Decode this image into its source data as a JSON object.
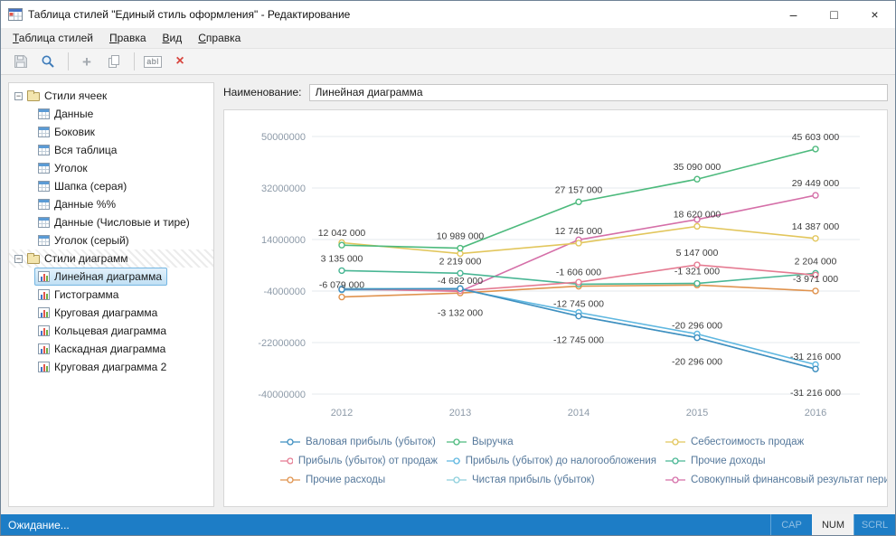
{
  "window": {
    "title": "Таблица стилей \"Единый стиль оформления\" - Редактирование",
    "controls": {
      "minimize": "–",
      "maximize": "□",
      "close": "×"
    }
  },
  "menu": {
    "items": [
      {
        "accel": "Т",
        "rest": "аблица стилей"
      },
      {
        "accel": "П",
        "rest": "равка"
      },
      {
        "accel": "В",
        "rest": "ид"
      },
      {
        "accel": "С",
        "rest": "правка"
      }
    ]
  },
  "toolbar": {
    "icons": [
      "save-icon",
      "search-icon",
      "add-icon",
      "copy-icon",
      "rename-icon",
      "delete-icon"
    ],
    "add_glyph": "+",
    "rename_glyph": "abl",
    "delete_glyph": "×"
  },
  "sidebar": {
    "collapse_glyph": "−",
    "groups": [
      {
        "label": "Стили ячеек",
        "items": [
          "Данные",
          "Боковик",
          "Вся таблица",
          "Уголок",
          "Шапка (серая)",
          "Данные %%",
          "Данные (Числовые и тире)",
          "Уголок (серый)"
        ]
      },
      {
        "label": "Стили диаграмм",
        "selected_item": "Линейная диаграмма",
        "items": [
          "Линейная диаграмма",
          "Гистограмма",
          "Круговая диаграмма",
          "Кольцевая диаграмма",
          "Каскадная диаграмма",
          "Круговая диаграмма 2"
        ]
      }
    ]
  },
  "editor": {
    "name_label": "Наименование:",
    "name_value": "Линейная диаграмма"
  },
  "chart_data": {
    "type": "line",
    "categories": [
      "2012",
      "2013",
      "2014",
      "2015",
      "2016"
    ],
    "y_ticks": [
      50000000,
      32000000,
      14000000,
      -4000000,
      -22000000,
      -40000000
    ],
    "ylim": [
      -40000000,
      50000000
    ],
    "grid": true,
    "legend_position": "bottom",
    "series": [
      {
        "name": "Валовая прибыль (убыток)",
        "color": "#3f8fc0",
        "values": [
          -3400000,
          -3132000,
          -12745000,
          -20296000,
          -31216000
        ],
        "labels": [
          "",
          "",
          "-12 745 000",
          "-20 296 000",
          "-31 216 000"
        ],
        "label_dy": -10
      },
      {
        "name": "Выручка",
        "color": "#4dba7d",
        "values": [
          12042000,
          10989000,
          27157000,
          35090000,
          45603000
        ],
        "labels": [
          "12 042 000",
          "10 989 000",
          "27 157 000",
          "35 090 000",
          "45 603 000"
        ],
        "label_dy": -10
      },
      {
        "name": "Себестоимость продаж",
        "color": "#e2c65c",
        "values": [
          12900000,
          9100000,
          12745000,
          18620000,
          14387000
        ],
        "labels": [
          "",
          "",
          "12 745 000",
          "18 620 000",
          "14 387 000"
        ],
        "label_dy": -10
      },
      {
        "name": "Прибыль (убыток) от продаж",
        "color": "#e57b92",
        "values": [
          -3350000,
          -3900000,
          -900000,
          5147000,
          1600000
        ],
        "labels": [
          "",
          "",
          "",
          "5 147 000",
          ""
        ],
        "label_dy": -10
      },
      {
        "name": "Прибыль (убыток) до налогообложения",
        "color": "#5fb7e0",
        "values": [
          -3600000,
          -3400000,
          -11500000,
          -19000000,
          -29700000
        ],
        "labels": [
          "",
          "",
          "",
          "",
          ""
        ],
        "label_dy": -10
      },
      {
        "name": "Прочие доходы",
        "color": "#49b694",
        "values": [
          3135000,
          2219000,
          -1606000,
          -1321000,
          2204000
        ],
        "labels": [
          "3 135 000",
          "2 219 000",
          "-1 606 000",
          "-1 321 000",
          "2 204 000"
        ],
        "label_dy": -10
      },
      {
        "name": "Прочие расходы",
        "color": "#e0934e",
        "values": [
          -6079000,
          -4682000,
          -2300000,
          -1900000,
          -3971000
        ],
        "labels": [
          "-6 079 000",
          "-4 682 000",
          "",
          "",
          "-3 971 000"
        ],
        "label_dy": -10
      },
      {
        "name": "Чистая прибыль (убыток)",
        "color": "#8ecfdc",
        "values": [
          -3100000,
          -3132000,
          -12745000,
          -20296000,
          -31216000
        ],
        "labels": [
          "",
          "-3 132 000",
          "-12 745 000",
          "-20 296 000",
          "-31 216 000"
        ],
        "label_dy": 30
      },
      {
        "name": "Совокупный финансовый результат периода",
        "color": "#d56fa8",
        "values": [
          -3200000,
          -4100000,
          13900000,
          21000000,
          29449000
        ],
        "labels": [
          "",
          "",
          "",
          "",
          "29 449 000"
        ],
        "label_dy": -10
      }
    ]
  },
  "status": {
    "text": "Ожидание...",
    "indicators": [
      {
        "label": "CAP",
        "active": false
      },
      {
        "label": "NUM",
        "active": true
      },
      {
        "label": "SCRL",
        "active": false
      }
    ]
  }
}
